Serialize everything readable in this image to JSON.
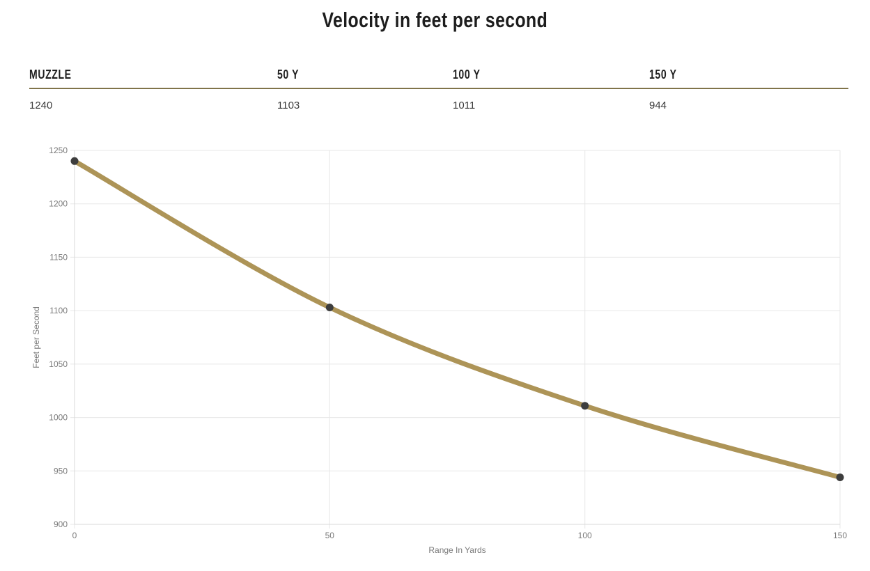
{
  "page": {
    "title": "Velocity in feet per second"
  },
  "stats_table": {
    "columns": [
      {
        "label": "MUZZLE",
        "value": "1240"
      },
      {
        "label": "50 Y",
        "value": "1103"
      },
      {
        "label": "100 Y",
        "value": "1011"
      },
      {
        "label": "150 Y",
        "value": "944"
      }
    ],
    "rule_color": "#80744a"
  },
  "chart_data": {
    "type": "line",
    "title": "Velocity in feet per second",
    "x": [
      0,
      50,
      100,
      150
    ],
    "series": [
      {
        "name": "Velocity",
        "values": [
          1240,
          1103,
          1011,
          944
        ]
      }
    ],
    "xlabel": "Range In Yards",
    "ylabel": "Feet per Second",
    "xlim": [
      0,
      150
    ],
    "ylim": [
      900,
      1250
    ],
    "x_ticks": [
      0,
      50,
      100,
      150
    ],
    "y_ticks": [
      900,
      950,
      1000,
      1050,
      1100,
      1150,
      1200,
      1250
    ],
    "grid": true,
    "legend": "none",
    "smooth": true,
    "colors": {
      "line": "#ad9457",
      "marker": "#3d3d3d",
      "grid": "#e7e7e7",
      "axis": "#d9d9d9",
      "tick_text": "#7a7a7a"
    }
  }
}
